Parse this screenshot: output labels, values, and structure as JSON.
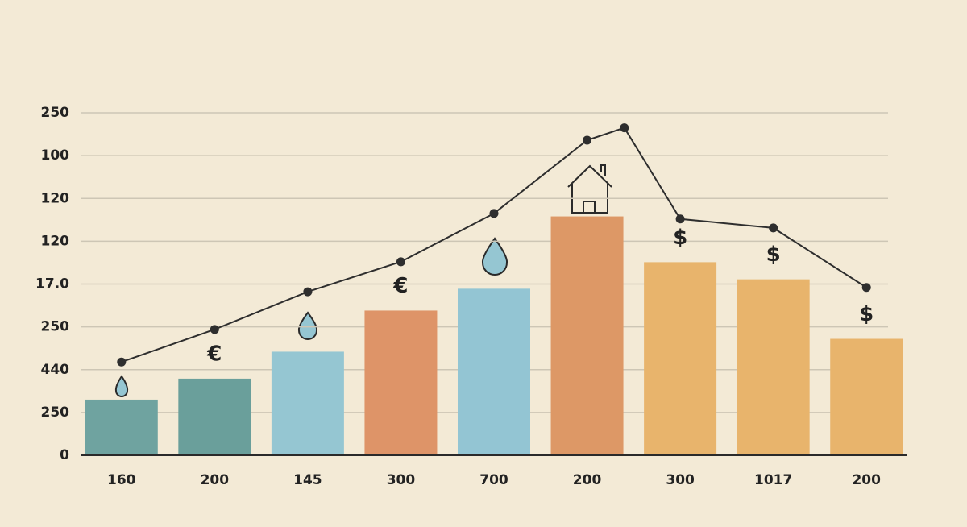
{
  "chart_data": {
    "type": "bar",
    "categories": [
      "160",
      "200",
      "145",
      "300",
      "700",
      "200",
      "300",
      "1017",
      "200"
    ],
    "values": [
      1.3,
      1.79,
      2.42,
      3.38,
      3.89,
      5.58,
      4.51,
      4.11,
      2.72
    ],
    "colors": [
      "#6fa3a0",
      "#6a9f9b",
      "#95c6d2",
      "#de9468",
      "#93c5d3",
      "#dd9866",
      "#e8b46c",
      "#e8b46c",
      "#e8b46c"
    ],
    "symbols": [
      null,
      "€",
      null,
      "€",
      null,
      null,
      "$",
      "$",
      "$"
    ],
    "line": {
      "color": "#2e2e2e",
      "x": [
        0,
        1,
        2,
        3,
        4,
        5,
        5.4,
        6,
        7,
        8
      ],
      "values": [
        2.18,
        2.94,
        3.82,
        4.52,
        5.65,
        7.36,
        7.65,
        5.52,
        5.31,
        3.92
      ]
    },
    "ylim": [
      0,
      8
    ],
    "yticks": [
      0,
      {
        "value": 1,
        "label": "250"
      },
      {
        "value": 2,
        "label": "440"
      },
      {
        "value": 3,
        "label": "250"
      },
      {
        "value": 4,
        "label": "17.0"
      },
      {
        "value": 5,
        "label": "120"
      },
      {
        "value": 6,
        "label": "120"
      },
      {
        "value": 7,
        "label": "100"
      },
      {
        "value": 8,
        "label": "250"
      }
    ],
    "grid": true
  }
}
